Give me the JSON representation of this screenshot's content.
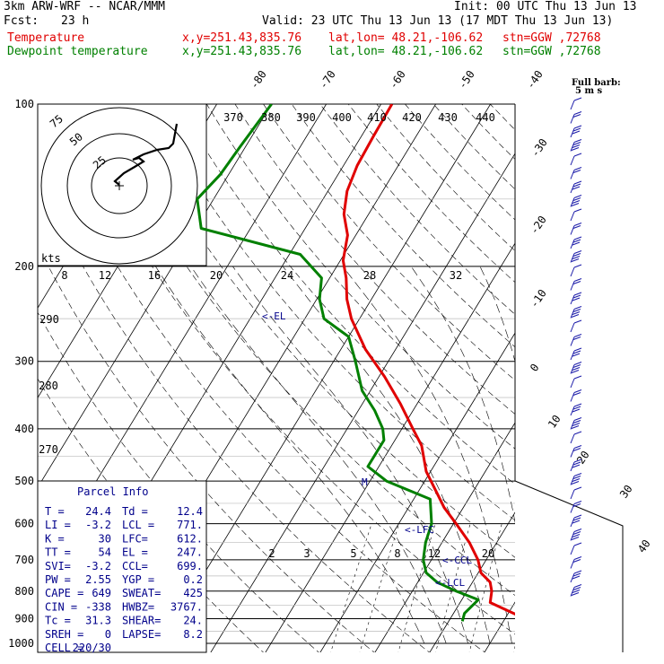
{
  "header": {
    "model": "3km ARW-WRF -- NCAR/MMM",
    "init": "Init: 00 UTC Thu 13 Jun 13",
    "fcst_label": "Fcst:",
    "fcst_value": "23 h",
    "valid": "Valid: 23 UTC Thu 13 Jun 13 (17 MDT Thu 13 Jun 13)",
    "temp_label": "Temperature",
    "dew_label": "Dewpoint temperature",
    "xy": "x,y=251.43,835.76",
    "latlon": "lat,lon= 48.21,-106.62",
    "stn": "stn=GGW ,72768",
    "barb_title": "Full barb:",
    "barb_units": "5 m s"
  },
  "colors": {
    "temperature": "#e00000",
    "dewpoint": "#008000",
    "label_blue": "#00008b",
    "grid": "#000000"
  },
  "parcel_info": {
    "title": "Parcel Info",
    "rows": [
      [
        "T  =",
        "24.4",
        "Td =",
        "12.4"
      ],
      [
        "LI =",
        "-3.2",
        "LCL =",
        "771."
      ],
      [
        "K  =",
        "30",
        "LFC=",
        "612."
      ],
      [
        "TT =",
        "54",
        "EL =",
        "247."
      ],
      [
        "SVI=",
        "-3.2",
        "CCL=",
        "699."
      ],
      [
        "PW =",
        "2.55",
        "YGP =",
        "0.2"
      ],
      [
        "CAPE =",
        "649",
        "SWEAT=",
        "425"
      ],
      [
        "CIN =",
        "-338",
        "HWBZ=",
        "3767."
      ],
      [
        "Tc =",
        "31.3",
        "SHEAR=",
        "24."
      ],
      [
        "SREH =",
        "0",
        "LAPSE=",
        "8.2"
      ],
      [
        "CELL =",
        "220/30",
        "",
        ""
      ]
    ]
  },
  "markers": {
    "el": "<-EL",
    "lfc": "<-LFC",
    "ccl": "<-CCL",
    "lcl": "<-LCL",
    "m": "M",
    "kts": "kts"
  },
  "chart_data": {
    "type": "line",
    "title": "",
    "ylabel": "",
    "xlabel": "",
    "y_scale": "log-pressure",
    "ylim": [
      1000,
      100
    ],
    "pressure_ticks": [
      "100",
      "200",
      "300",
      "400",
      "500",
      "600",
      "700",
      "800",
      "900",
      "1000"
    ],
    "isotherm_labels": [
      "-80",
      "-70",
      "-60",
      "-50",
      "-40",
      "-30",
      "-20",
      "-10",
      "0",
      "10",
      "20",
      "30",
      "40"
    ],
    "theta_labels": [
      "370",
      "380",
      "390",
      "400",
      "410",
      "420",
      "430",
      "440",
      "290",
      "280",
      "270"
    ],
    "mixing_ratio_labels": [
      "8",
      "12",
      "16",
      "20",
      "24",
      "28",
      "32"
    ],
    "mixing_ratio_low_labels": [
      "2",
      "3",
      "5",
      "8",
      "12",
      "20"
    ],
    "hodograph_ring_labels": [
      "75",
      "50",
      "25"
    ],
    "series": [
      {
        "name": "Temperature",
        "p": [
          910,
          880,
          840,
          800,
          770,
          740,
          700,
          650,
          600,
          560,
          520,
          480,
          430,
          400,
          360,
          320,
          285,
          250,
          230,
          210,
          195,
          175,
          160,
          145,
          130,
          115,
          100
        ],
        "t": [
          25.0,
          21.0,
          15.5,
          14.5,
          13.2,
          10.5,
          8.5,
          5.0,
          0.5,
          -3.5,
          -7.0,
          -10.8,
          -14.5,
          -18.0,
          -23.0,
          -29.0,
          -35.5,
          -41.5,
          -44.5,
          -47.0,
          -49.5,
          -51.5,
          -54.5,
          -56.5,
          -57.5,
          -57.8,
          -58.0
        ]
      },
      {
        "name": "Dewpoint temperature",
        "p": [
          910,
          880,
          830,
          800,
          770,
          740,
          700,
          650,
          600,
          540,
          500,
          470,
          420,
          400,
          370,
          340,
          300,
          270,
          250,
          230,
          210,
          190,
          170,
          150,
          135,
          120,
          100
        ],
        "t": [
          12.5,
          12.0,
          13.0,
          8.0,
          3.5,
          0.5,
          -1.5,
          -3.0,
          -4.0,
          -7.0,
          -17.0,
          -22.0,
          -22.0,
          -23.5,
          -27.0,
          -31.5,
          -36.0,
          -40.0,
          -46.5,
          -49.5,
          -51.5,
          -58.0,
          -79.0,
          -83.0,
          -81.5,
          -81.0,
          -80.0
        ]
      }
    ]
  }
}
